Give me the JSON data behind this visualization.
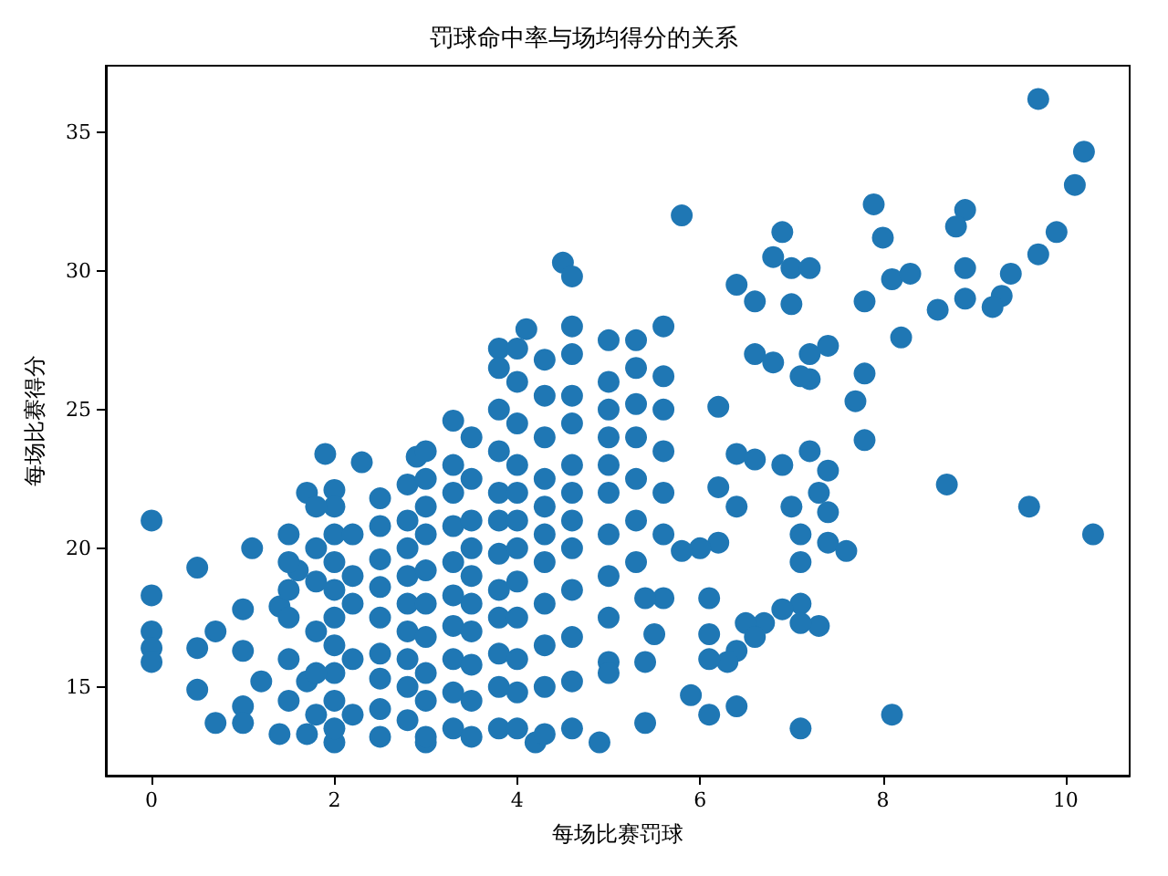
{
  "chart_data": {
    "type": "scatter",
    "title": "罚球命中率与场均得分的关系",
    "xlabel": "每场比赛罚球",
    "ylabel": "每场比赛得分",
    "xlim": [
      -0.5,
      10.7
    ],
    "xticks": [
      0,
      2,
      4,
      6,
      8,
      10
    ],
    "ylim": [
      11.8,
      37.4
    ],
    "yticks": [
      15,
      20,
      25,
      30,
      35
    ],
    "grid": false,
    "marker": "circle",
    "series": [
      {
        "color": "#1f77b4",
        "x": [
          9.7,
          10.2,
          10.1,
          9.9,
          9.7,
          9.4,
          9.3,
          9.2,
          8.9,
          8.9,
          8.9,
          8.8,
          7.9,
          8.0,
          8.1,
          8.3,
          7.8,
          8.2,
          8.6,
          5.8,
          6.9,
          6.8,
          7.0,
          7.2,
          6.4,
          6.6,
          7.0,
          7.2,
          7.1,
          7.8,
          7.7,
          7.4,
          7.2,
          6.6,
          6.8,
          8.7,
          9.6,
          10.3,
          8.1,
          7.1,
          7.8,
          7.4,
          7.2,
          6.9,
          7.3,
          7.4,
          7.0,
          7.1,
          7.4,
          7.6,
          7.1,
          7.1,
          6.9,
          7.3,
          7.1,
          6.7,
          6.5,
          6.6,
          6.4,
          6.3,
          6.4,
          6.1,
          5.9,
          5.4,
          6.1,
          6.1,
          6.1,
          5.5,
          5.4,
          5.0,
          5.6,
          5.4,
          6.4,
          6.2,
          6.0,
          5.8,
          6.2,
          6.4,
          6.6,
          6.2,
          0.0,
          0.0,
          0.0,
          0.0,
          0.0,
          0.5,
          1.1,
          1.5,
          1.9,
          2.3,
          2.9,
          3.3,
          0.5,
          0.5,
          0.7,
          1.0,
          1.0,
          1.0,
          1.0,
          0.7,
          1.4,
          1.7,
          2.0,
          3.0,
          4.2,
          4.9,
          1.4,
          1.7,
          2.0,
          1.6,
          1.2,
          1.7,
          4.5,
          4.6,
          4.1,
          3.8,
          2.0,
          2.0,
          2.0,
          2.0,
          2.0,
          2.0,
          2.0,
          2.0,
          2.0,
          2.2,
          2.2,
          2.2,
          2.2,
          2.2,
          2.5,
          2.5,
          2.5,
          2.5,
          2.5,
          2.5,
          2.5,
          2.5,
          2.5,
          2.8,
          2.8,
          2.8,
          2.8,
          2.8,
          2.8,
          2.8,
          2.8,
          2.8,
          3.0,
          3.0,
          3.0,
          3.0,
          3.0,
          3.0,
          3.0,
          3.0,
          3.0,
          3.0,
          3.3,
          3.3,
          3.3,
          3.3,
          3.3,
          3.3,
          3.3,
          3.3,
          3.3,
          3.5,
          3.5,
          3.5,
          3.5,
          3.5,
          3.5,
          3.5,
          3.5,
          3.5,
          3.5,
          3.8,
          3.8,
          3.8,
          3.8,
          3.8,
          3.8,
          3.8,
          3.8,
          3.8,
          3.8,
          3.8,
          4.0,
          4.0,
          4.0,
          4.0,
          4.0,
          4.0,
          4.0,
          4.0,
          4.0,
          4.0,
          4.0,
          4.0,
          4.3,
          4.3,
          4.3,
          4.3,
          4.3,
          4.3,
          4.3,
          4.3,
          4.3,
          4.3,
          4.3,
          4.6,
          4.6,
          4.6,
          4.6,
          4.6,
          4.6,
          4.6,
          4.6,
          4.6,
          4.6,
          4.6,
          4.6,
          5.0,
          5.0,
          5.0,
          5.0,
          5.0,
          5.0,
          5.0,
          5.0,
          5.0,
          5.0,
          5.3,
          5.3,
          5.3,
          5.3,
          5.3,
          5.3,
          5.3,
          5.6,
          5.6,
          5.6,
          5.6,
          5.6,
          5.6,
          1.5,
          1.5,
          1.5,
          1.5,
          1.5,
          1.8,
          1.8,
          1.8,
          1.8,
          1.8,
          1.8
        ],
        "values": [
          36.2,
          34.3,
          33.1,
          31.4,
          30.6,
          29.9,
          29.1,
          28.7,
          30.1,
          29.0,
          32.2,
          31.6,
          32.4,
          31.2,
          29.7,
          29.9,
          28.9,
          27.6,
          28.6,
          32.0,
          31.4,
          30.5,
          30.1,
          30.1,
          29.5,
          28.9,
          28.8,
          26.1,
          26.2,
          26.3,
          25.3,
          27.3,
          27.0,
          27.0,
          26.7,
          22.3,
          21.5,
          20.5,
          14.0,
          13.5,
          23.9,
          22.8,
          23.5,
          23.0,
          22.0,
          21.3,
          21.5,
          20.5,
          20.2,
          19.9,
          19.5,
          18.0,
          17.8,
          17.2,
          17.3,
          17.3,
          17.3,
          16.8,
          16.3,
          15.9,
          14.3,
          14.0,
          14.7,
          13.7,
          18.2,
          16.9,
          16.0,
          16.9,
          15.9,
          15.9,
          18.2,
          18.2,
          21.5,
          20.2,
          20.0,
          19.9,
          22.2,
          23.4,
          23.2,
          25.1,
          21.0,
          18.3,
          17.0,
          16.4,
          15.9,
          19.3,
          20.0,
          20.5,
          23.4,
          23.1,
          23.3,
          24.6,
          16.4,
          14.9,
          13.7,
          17.8,
          16.3,
          14.3,
          13.7,
          17.0,
          13.3,
          13.3,
          13.0,
          13.0,
          13.0,
          13.0,
          17.9,
          22.0,
          22.1,
          19.2,
          15.2,
          15.2,
          30.3,
          29.8,
          27.9,
          27.2,
          13.5,
          14.5,
          15.5,
          16.5,
          17.5,
          18.5,
          19.5,
          20.5,
          21.5,
          14.0,
          16.0,
          18.0,
          19.0,
          20.5,
          13.2,
          14.2,
          15.3,
          16.2,
          17.5,
          18.6,
          19.6,
          20.8,
          21.8,
          13.8,
          15.0,
          16.0,
          17.0,
          18.0,
          19.0,
          20.0,
          21.0,
          22.3,
          13.2,
          14.5,
          15.5,
          16.8,
          18.0,
          19.2,
          20.5,
          21.5,
          22.5,
          23.5,
          13.5,
          14.8,
          16.0,
          17.2,
          18.3,
          19.5,
          20.8,
          22.0,
          23.0,
          13.2,
          14.5,
          15.8,
          17.0,
          18.0,
          19.0,
          20.0,
          21.0,
          22.5,
          24.0,
          13.5,
          15.0,
          16.2,
          17.5,
          18.5,
          19.8,
          21.0,
          22.0,
          23.5,
          25.0,
          26.5,
          13.5,
          14.8,
          16.0,
          17.5,
          18.8,
          20.0,
          21.0,
          22.0,
          23.0,
          24.5,
          26.0,
          27.2,
          13.3,
          15.0,
          16.5,
          18.0,
          19.5,
          20.5,
          21.5,
          22.5,
          24.0,
          25.5,
          26.8,
          13.5,
          15.2,
          16.8,
          18.5,
          20.0,
          21.0,
          22.0,
          23.0,
          24.5,
          25.5,
          27.0,
          28.0,
          15.5,
          17.5,
          19.0,
          20.5,
          22.0,
          23.0,
          24.0,
          25.0,
          26.0,
          27.5,
          19.5,
          21.0,
          22.5,
          24.0,
          25.2,
          26.5,
          27.5,
          20.5,
          22.0,
          23.5,
          25.0,
          26.2,
          28.0,
          14.5,
          16.0,
          17.5,
          18.5,
          19.5,
          14.0,
          15.5,
          17.0,
          18.8,
          20.0,
          21.5
        ]
      }
    ]
  }
}
